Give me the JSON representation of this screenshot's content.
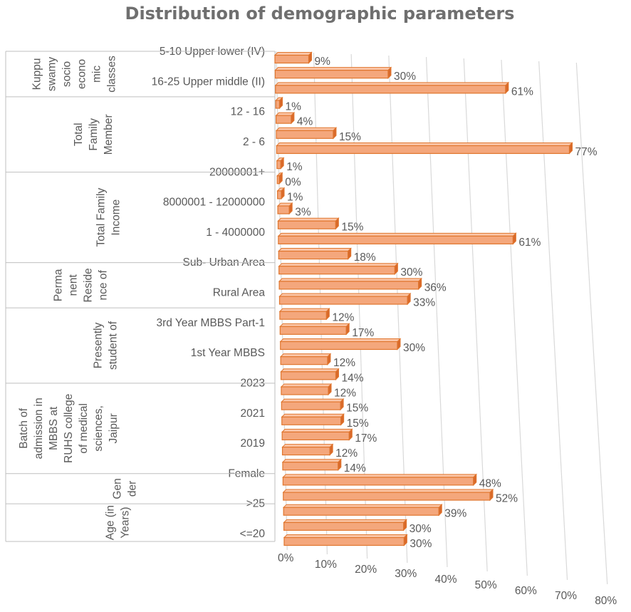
{
  "chart_data": {
    "type": "bar",
    "orientation": "horizontal",
    "style": "3d-clustered-bar",
    "title": "Distribution of demographic parameters",
    "xlim": [
      0,
      80
    ],
    "x_ticks": [
      "0%",
      "10%",
      "20%",
      "30%",
      "40%",
      "50%",
      "60%",
      "70%",
      "80%"
    ],
    "grid": true,
    "legend": "none",
    "bar_color": "#F4A77C",
    "bar_edge_color": "#E0762E",
    "groups": [
      {
        "label_lines": [
          "Kuppu",
          "swamy",
          "socio",
          "econo",
          "mic",
          "classes"
        ],
        "bars": [
          {
            "label": "5-10 Upper lower (IV)",
            "value": 9,
            "data_label": "9%"
          },
          {
            "label": "",
            "value": 30,
            "data_label": "30%"
          },
          {
            "label": "16-25 Upper middle (II)",
            "value": 61,
            "data_label": "61%"
          }
        ]
      },
      {
        "label_lines": [
          "Total",
          "Family",
          "Member"
        ],
        "bars": [
          {
            "label": "",
            "value": 1,
            "data_label": "1%"
          },
          {
            "label": "12 - 16",
            "value": 4,
            "data_label": "4%"
          },
          {
            "label": "",
            "value": 15,
            "data_label": "15%"
          },
          {
            "label": "2 - 6",
            "value": 77,
            "data_label": "77%"
          },
          {
            "label": "",
            "value": 1,
            "data_label": "1%"
          }
        ]
      },
      {
        "label_lines": [
          "Total Family",
          "Income"
        ],
        "bars": [
          {
            "label": "20000001+",
            "value": 0,
            "data_label": "0%"
          },
          {
            "label": "",
            "value": 1,
            "data_label": "1%"
          },
          {
            "label": "8000001 - 12000000",
            "value": 3,
            "data_label": "3%"
          },
          {
            "label": "",
            "value": 15,
            "data_label": "15%"
          },
          {
            "label": "1 - 4000000",
            "value": 61,
            "data_label": "61%"
          },
          {
            "label": "",
            "value": 18,
            "data_label": "18%"
          }
        ]
      },
      {
        "label_lines": [
          "Perma",
          "nent",
          "Reside",
          "nce of"
        ],
        "bars": [
          {
            "label": "Sub- Urban Area",
            "value": 30,
            "data_label": "30%"
          },
          {
            "label": "",
            "value": 36,
            "data_label": "36%"
          },
          {
            "label": "Rural Area",
            "value": 33,
            "data_label": "33%"
          }
        ]
      },
      {
        "label_lines": [
          "Presently",
          "student of"
        ],
        "bars": [
          {
            "label": "",
            "value": 12,
            "data_label": "12%"
          },
          {
            "label": "3rd Year MBBS Part-1",
            "value": 17,
            "data_label": "17%"
          },
          {
            "label": "",
            "value": 30,
            "data_label": "30%"
          },
          {
            "label": "1st Year MBBS",
            "value": 12,
            "data_label": "12%"
          },
          {
            "label": "",
            "value": 14,
            "data_label": "14%"
          }
        ]
      },
      {
        "label_lines": [
          "Batch of",
          "admission in",
          "MBBS at",
          "RUHS college",
          "of medical",
          "sciences,",
          "Jaipur"
        ],
        "bars": [
          {
            "label": "2023",
            "value": 12,
            "data_label": "12%"
          },
          {
            "label": "",
            "value": 15,
            "data_label": "15%"
          },
          {
            "label": "2021",
            "value": 15,
            "data_label": "15%"
          },
          {
            "label": "",
            "value": 17,
            "data_label": "17%"
          },
          {
            "label": "2019",
            "value": 12,
            "data_label": "12%"
          },
          {
            "label": "",
            "value": 14,
            "data_label": "14%"
          }
        ]
      },
      {
        "label_lines": [
          "Gen",
          "der"
        ],
        "bars": [
          {
            "label": "Female",
            "value": 48,
            "data_label": "48%"
          },
          {
            "label": "",
            "value": 52,
            "data_label": "52%"
          }
        ]
      },
      {
        "label_lines": [
          "Age (in",
          "Years)"
        ],
        "bars": [
          {
            "label": ">25",
            "value": 39,
            "data_label": "39%"
          },
          {
            "label": "",
            "value": 30,
            "data_label": "30%"
          },
          {
            "label": "<=20",
            "value": 30,
            "data_label": "30%"
          }
        ]
      }
    ]
  }
}
